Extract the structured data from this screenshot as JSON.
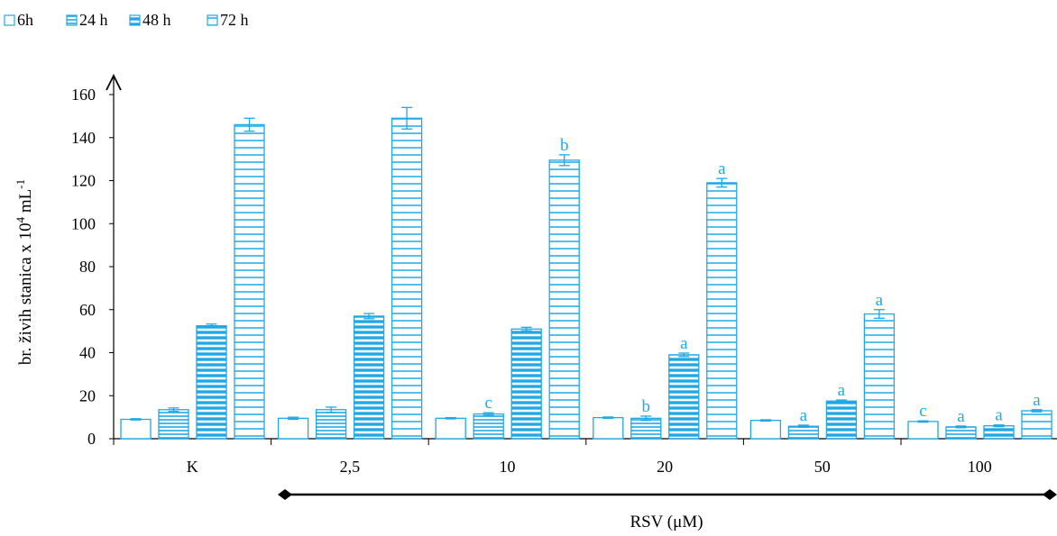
{
  "chart_data": {
    "type": "bar",
    "categories": [
      "K",
      "2,5",
      "10",
      "20",
      "50",
      "100"
    ],
    "series": [
      {
        "name": "6h",
        "values": [
          9,
          9.5,
          9.5,
          9.8,
          8.5,
          8
        ],
        "errors": [
          0.3,
          0.5,
          0.3,
          0.3,
          0.3,
          0.3
        ],
        "letters": [
          "",
          "",
          "",
          "",
          "",
          "c"
        ]
      },
      {
        "name": "24 h",
        "values": [
          13.5,
          13.5,
          11.5,
          9.5,
          5.8,
          5.5
        ],
        "errors": [
          0.8,
          1.2,
          0.6,
          1.0,
          0.5,
          0.4
        ],
        "letters": [
          "",
          "",
          "c",
          "b",
          "a",
          "a"
        ]
      },
      {
        "name": "48 h",
        "values": [
          52.5,
          57,
          51,
          39,
          17.5,
          6
        ],
        "errors": [
          0.8,
          1.2,
          0.8,
          0.8,
          0.5,
          0.4
        ],
        "letters": [
          "",
          "",
          "",
          "a",
          "a",
          "a"
        ]
      },
      {
        "name": "72 h",
        "values": [
          146,
          149,
          129.5,
          119,
          58,
          13
        ],
        "errors": [
          3,
          5,
          2.5,
          2,
          2,
          0.5
        ],
        "letters": [
          "",
          "",
          "b",
          "a",
          "a",
          "a"
        ]
      }
    ],
    "ylabel": "br. živih stanica x 10",
    "ylabel_sup1": "4",
    "ylabel_mid": " mL",
    "ylabel_sup2": "-1",
    "xlabel": "RSV (μM)",
    "ylim": [
      0,
      160
    ],
    "yticks": [
      "0",
      "20",
      "40",
      "60",
      "80",
      "100",
      "120",
      "140",
      "160"
    ],
    "legend_position": "top-left",
    "grid": false,
    "colors": {
      "bar": "#21a8e3",
      "axis": "#000000",
      "text": "#000000",
      "letters": "#21a8e3"
    }
  }
}
